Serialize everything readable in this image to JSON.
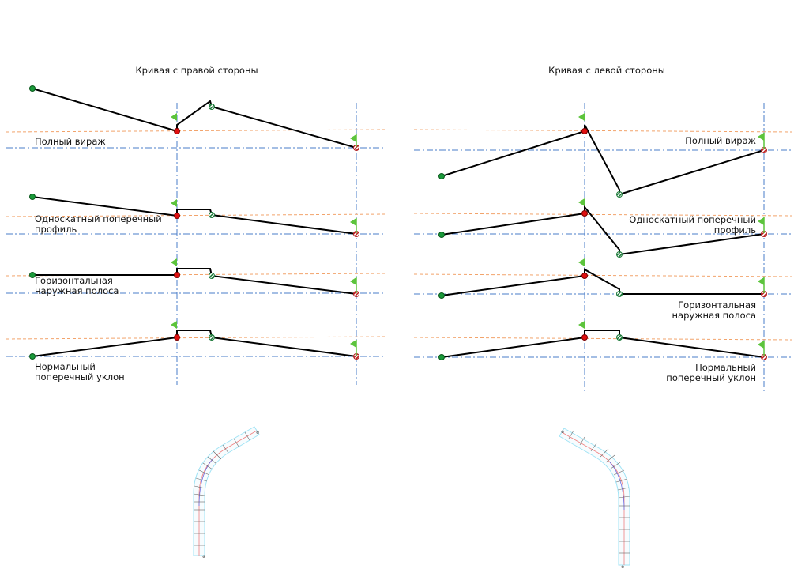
{
  "left_panel": {
    "title": "Кривая с правой стороны",
    "rows": [
      {
        "label_lines": [
          "Полный вираж"
        ]
      },
      {
        "label_lines": [
          "Односкатный поперечный",
          "профиль"
        ]
      },
      {
        "label_lines": [
          "Горизонтальная",
          "наружная полоса"
        ]
      },
      {
        "label_lines": [
          "Нормальный",
          "поперечный уклон"
        ]
      }
    ]
  },
  "right_panel": {
    "title": "Кривая с левой стороны",
    "rows": [
      {
        "label_lines": [
          "Полный вираж"
        ]
      },
      {
        "label_lines": [
          "Односкатный поперечный",
          "профиль"
        ]
      },
      {
        "label_lines": [
          "Горизонтальная",
          "наружная полоса"
        ]
      },
      {
        "label_lines": [
          "Нормальный",
          "поперечный уклон"
        ]
      }
    ]
  },
  "colors": {
    "profile": "#000000",
    "baseline": "#4a7cc9",
    "design_line": "#f2a36b",
    "start_point": "#1a9a3a",
    "pivot_point": "#e01010",
    "flag": "#5cc43c",
    "road_edge": "#9fe3f5",
    "road_centerline": "#f08080"
  }
}
